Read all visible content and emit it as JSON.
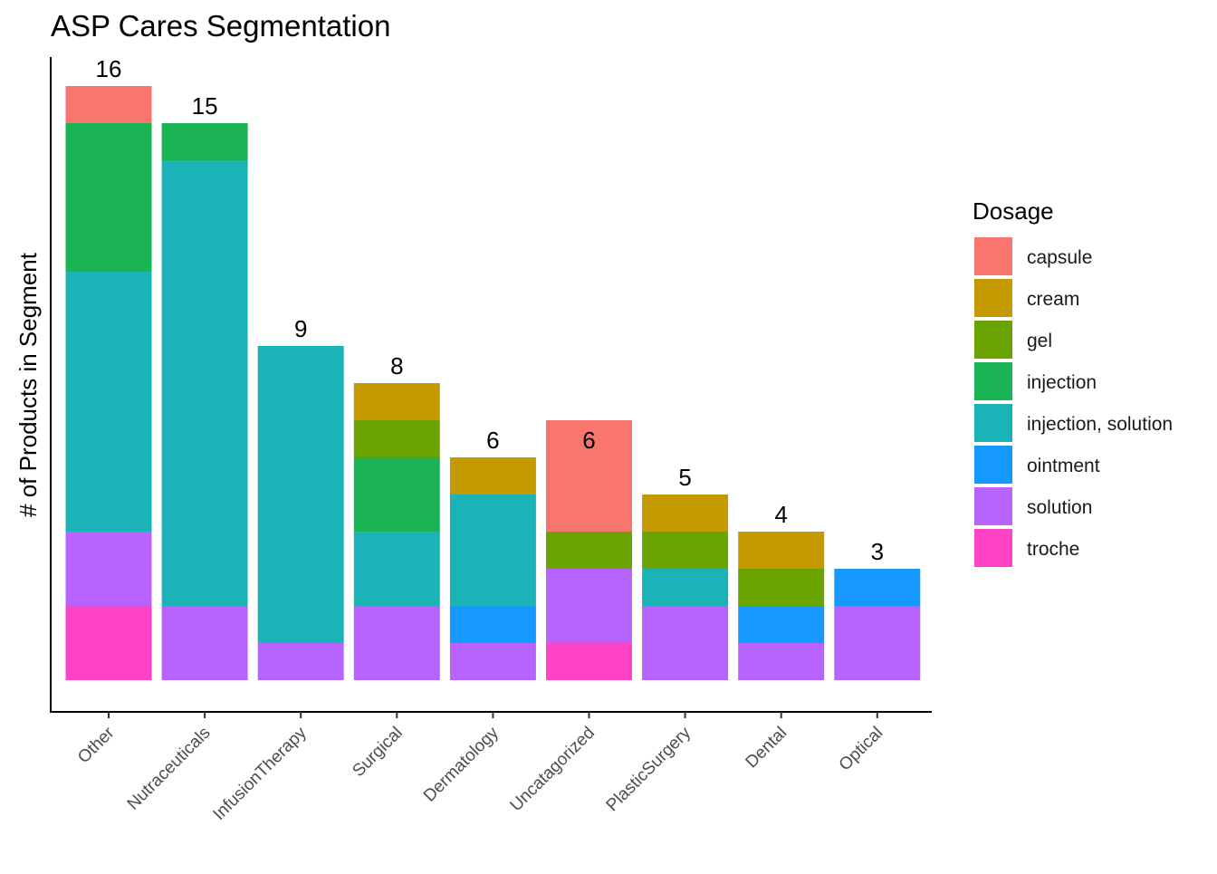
{
  "chart_data": {
    "type": "bar",
    "stacked": true,
    "title": "ASP Cares Segmentation",
    "xlabel": "",
    "ylabel": "# of Products in Segment",
    "ylim": [
      0,
      17
    ],
    "grid": false,
    "legend_position": "right",
    "legend_title": "Dosage",
    "categories": [
      "Other",
      "Nutraceuticals",
      "InfusionTherapy",
      "Surgical",
      "Dermatology",
      "Uncatagorized",
      "PlasticSurgery",
      "Dental",
      "Optical"
    ],
    "totals": [
      16,
      15,
      9,
      8,
      6,
      6,
      5,
      4,
      3
    ],
    "series": [
      {
        "name": "capsule",
        "color": "#F8766D",
        "values": [
          1,
          0,
          0,
          0,
          0,
          3,
          0,
          0,
          0
        ]
      },
      {
        "name": "cream",
        "color": "#C49A00",
        "values": [
          0,
          0,
          0,
          1,
          1,
          0,
          1,
          1,
          0
        ]
      },
      {
        "name": "gel",
        "color": "#6BA300",
        "values": [
          0,
          0,
          0,
          1,
          0,
          1,
          1,
          1,
          0
        ]
      },
      {
        "name": "injection",
        "color": "#1AB455",
        "values": [
          4,
          1,
          0,
          2,
          0,
          0,
          0,
          0,
          0
        ]
      },
      {
        "name": "injection, solution",
        "color": "#1AB3B7",
        "values": [
          7,
          12,
          8,
          2,
          3,
          0,
          1,
          0,
          0
        ]
      },
      {
        "name": "ointment",
        "color": "#1699FF",
        "values": [
          0,
          0,
          0,
          0,
          1,
          0,
          0,
          1,
          1
        ]
      },
      {
        "name": "solution",
        "color": "#B764FF",
        "values": [
          2,
          2,
          1,
          2,
          1,
          2,
          2,
          1,
          2
        ]
      },
      {
        "name": "troche",
        "color": "#FF42C6",
        "values": [
          2,
          0,
          0,
          0,
          0,
          1,
          0,
          0,
          0
        ]
      }
    ]
  }
}
